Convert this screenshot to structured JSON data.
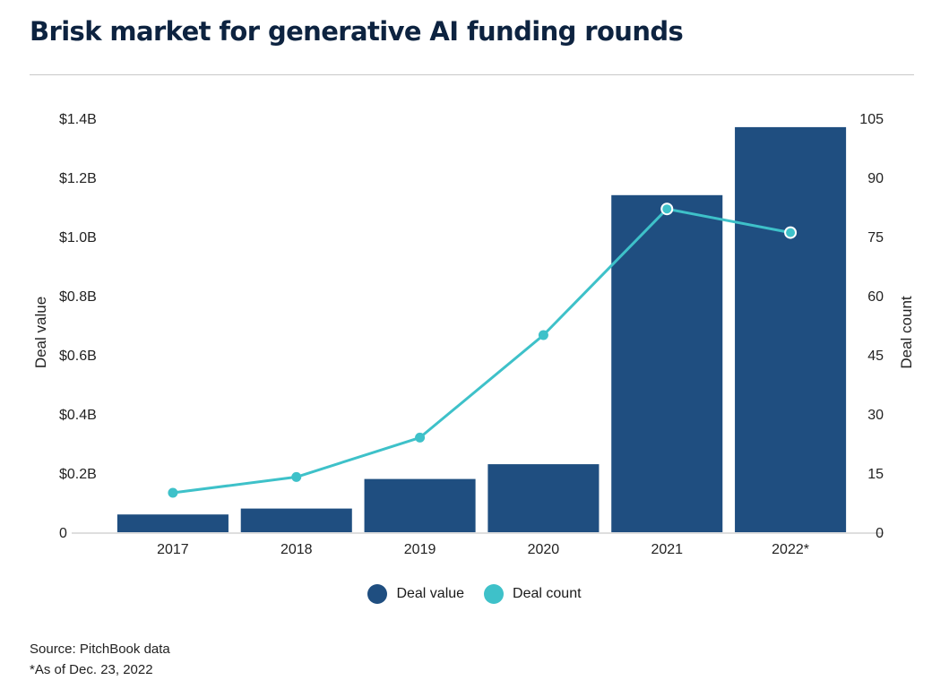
{
  "title": "Brisk market for generative AI funding rounds",
  "colors": {
    "deal_value": "#1f4e80",
    "deal_count": "#3ec1c9",
    "title": "#0d2340"
  },
  "chart_data": {
    "type": "bar",
    "categories": [
      "2017",
      "2018",
      "2019",
      "2020",
      "2021",
      "2022*"
    ],
    "series": [
      {
        "name": "Deal value",
        "type": "bar",
        "axis": "left",
        "values": [
          0.06,
          0.08,
          0.18,
          0.23,
          1.14,
          1.37
        ]
      },
      {
        "name": "Deal count",
        "type": "line",
        "axis": "right",
        "values": [
          10,
          14,
          24,
          50,
          82,
          76
        ]
      }
    ],
    "ylabel": "Deal value",
    "y2label": "Deal count",
    "ylim": [
      0,
      1.4
    ],
    "y2lim": [
      0,
      105
    ],
    "y_ticks": [
      0,
      0.2,
      0.4,
      0.6,
      0.8,
      1.0,
      1.2,
      1.4
    ],
    "y_tick_labels": [
      "0",
      "$0.2B",
      "$0.4B",
      "$0.6B",
      "$0.8B",
      "$1.0B",
      "$1.2B",
      "$1.4B"
    ],
    "y2_ticks": [
      0,
      15,
      30,
      45,
      60,
      75,
      90,
      105
    ],
    "y2_tick_labels": [
      "0",
      "15",
      "30",
      "45",
      "60",
      "75",
      "90",
      "105"
    ],
    "grid": false,
    "legend": "bottom-center"
  },
  "legend": {
    "deal_value": "Deal value",
    "deal_count": "Deal count"
  },
  "footnotes": {
    "source": "Source: PitchBook data",
    "asof": "*As of Dec. 23, 2022"
  }
}
